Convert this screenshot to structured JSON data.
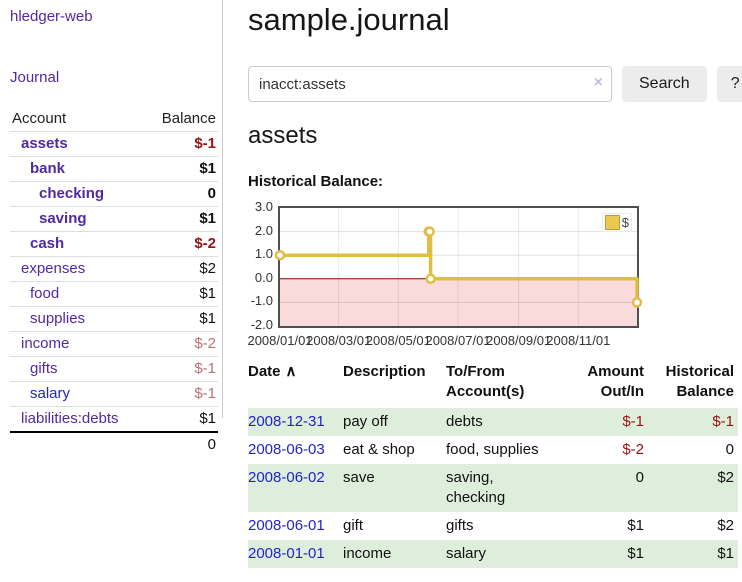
{
  "brand": "hledger-web",
  "nav": {
    "journal": "Journal"
  },
  "sidebar": {
    "account_header": "Account",
    "balance_header": "Balance",
    "accounts": [
      {
        "name": "assets",
        "indent": 1,
        "balance": "$-1",
        "bold": true,
        "tone": "neg-strong"
      },
      {
        "name": "bank",
        "indent": 2,
        "balance": "$1",
        "bold": true,
        "tone": "pos"
      },
      {
        "name": "checking",
        "indent": 3,
        "balance": "0",
        "bold": true,
        "tone": "pos"
      },
      {
        "name": "saving",
        "indent": 3,
        "balance": "$1",
        "bold": true,
        "tone": "pos"
      },
      {
        "name": "cash",
        "indent": 2,
        "balance": "$-2",
        "bold": true,
        "tone": "neg-strong"
      },
      {
        "name": "expenses",
        "indent": 1,
        "balance": "$2",
        "bold": false,
        "tone": "pos"
      },
      {
        "name": "food",
        "indent": 2,
        "balance": "$1",
        "bold": false,
        "tone": "pos"
      },
      {
        "name": "supplies",
        "indent": 2,
        "balance": "$1",
        "bold": false,
        "tone": "pos"
      },
      {
        "name": "income",
        "indent": 1,
        "balance": "$-2",
        "bold": false,
        "tone": "neg-muted"
      },
      {
        "name": "gifts",
        "indent": 2,
        "balance": "$-1",
        "bold": false,
        "tone": "neg-muted"
      },
      {
        "name": "salary",
        "indent": 2,
        "balance": "$-1",
        "bold": false,
        "tone": "neg-muted",
        "blue": true
      },
      {
        "name": "liabilities:debts",
        "indent": 1,
        "balance": "$1",
        "bold": false,
        "tone": "pos"
      }
    ],
    "total": "0"
  },
  "header": {
    "title": "sample.journal"
  },
  "search": {
    "value": "inacct:assets",
    "clear_icon": "×",
    "search_button": "Search",
    "help_button": "?"
  },
  "account_view": {
    "title": "assets",
    "chart_heading": "Historical Balance:"
  },
  "chart_data": {
    "type": "line",
    "step": true,
    "title": "Historical Balance:",
    "series": [
      {
        "name": "$",
        "x": [
          "2008/01/01",
          "2008/06/01",
          "2008/06/02",
          "2008/06/03",
          "2008/12/31"
        ],
        "values": [
          1,
          2,
          2,
          0,
          -1
        ]
      }
    ],
    "x_min": "2008/01/01",
    "x_max": "2008/12/31",
    "ylim": [
      -2,
      3
    ],
    "yticks": [
      "3.0",
      "2.0",
      "1.0",
      "0.0",
      "-1.0",
      "-2.0"
    ],
    "xticks": [
      "2008/01/01",
      "2008/03/01",
      "2008/05/01",
      "2008/07/01",
      "2008/09/01",
      "2008/11/01"
    ],
    "legend": "$",
    "legend_position": "top-right",
    "grid": true,
    "line_color": "#e2bd45",
    "marker_fill": "#ffffff",
    "negative_fill": "#f9dbdb",
    "zero_line_color": "#8b0000"
  },
  "register": {
    "columns": {
      "date": "Date",
      "sort_icon": "∧",
      "description": "Description",
      "accounts": "To/From Account(s)",
      "amount": "Amount Out/In",
      "balance": "Historical Balance"
    },
    "rows": [
      {
        "date": "2008-12-31",
        "description": "pay off",
        "accounts": "debts",
        "amount": "$-1",
        "amount_tone": "neg",
        "balance": "$-1",
        "balance_tone": "neg"
      },
      {
        "date": "2008-06-03",
        "description": "eat & shop",
        "accounts": "food, supplies",
        "amount": "$-2",
        "amount_tone": "neg",
        "balance": "0",
        "balance_tone": "pos"
      },
      {
        "date": "2008-06-02",
        "description": "save",
        "accounts": "saving, checking",
        "amount": "0",
        "amount_tone": "pos",
        "balance": "$2",
        "balance_tone": "pos"
      },
      {
        "date": "2008-06-01",
        "description": "gift",
        "accounts": "gifts",
        "amount": "$1",
        "amount_tone": "pos",
        "balance": "$2",
        "balance_tone": "pos"
      },
      {
        "date": "2008-01-01",
        "description": "income",
        "accounts": "salary",
        "amount": "$1",
        "amount_tone": "pos",
        "balance": "$1",
        "balance_tone": "pos"
      }
    ]
  },
  "colors": {
    "accent_purple": "#5229a3",
    "link_blue": "#2323cc",
    "negative_strong": "#941414",
    "negative_muted": "#bb7077",
    "row_stripe_green": "#ddeeda",
    "chart_line_gold": "#e2bd45",
    "chart_negative_pink": "#f9dbdb",
    "zero_line_red": "#8b0000",
    "legend_swatch_gold": "#e9c94f"
  }
}
